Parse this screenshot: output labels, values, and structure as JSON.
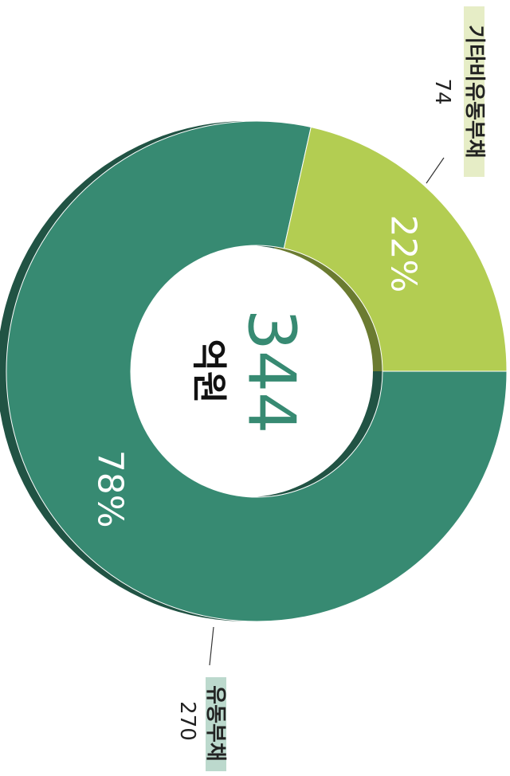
{
  "chart_data": {
    "type": "donut",
    "categories": [
      "유동부채",
      "기타비유동부채"
    ],
    "values": [
      270,
      74
    ],
    "colors": [
      "#378a72",
      "#b3cd52"
    ],
    "shares": [
      78,
      22
    ],
    "share_labels": [
      "78%",
      "22%"
    ],
    "total": 344,
    "total_unit": "억원"
  }
}
